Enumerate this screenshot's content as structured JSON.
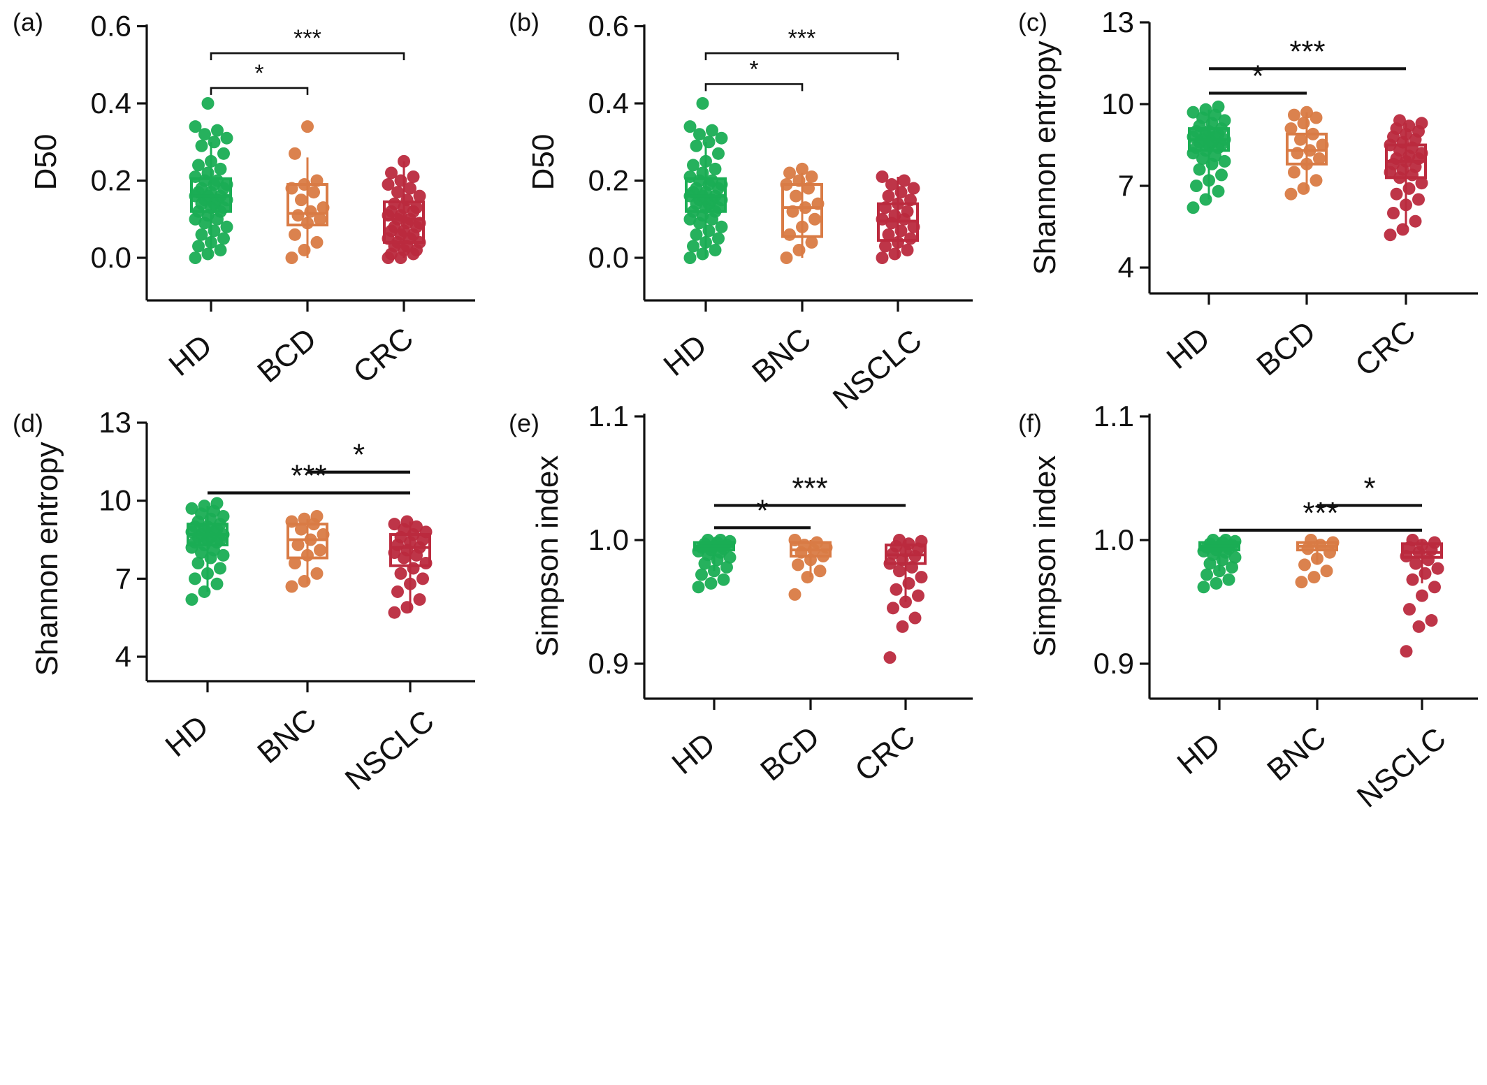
{
  "colors": {
    "HD": "#1aad54",
    "BCD": "#d97b45",
    "BNC": "#d97b45",
    "CRC": "#bb2a3e",
    "NSCLC": "#bb2a3e",
    "axis": "#111111"
  },
  "panels": [
    {
      "id": "a",
      "label": "(a)",
      "ylabel": "D50",
      "yticks": [
        "0.0",
        "0.2",
        "0.4",
        "0.6"
      ],
      "categories": [
        "HD",
        "BCD",
        "CRC"
      ]
    },
    {
      "id": "b",
      "label": "(b)",
      "ylabel": "D50",
      "yticks": [
        "0.0",
        "0.2",
        "0.4",
        "0.6"
      ],
      "categories": [
        "HD",
        "BNC",
        "NSCLC"
      ]
    },
    {
      "id": "c",
      "label": "(c)",
      "ylabel": "Shannon entropy",
      "yticks": [
        "4",
        "7",
        "10",
        "13"
      ],
      "categories": [
        "HD",
        "BCD",
        "CRC"
      ]
    },
    {
      "id": "d",
      "label": "(d)",
      "ylabel": "Shannon entropy",
      "yticks": [
        "4",
        "7",
        "10",
        "13"
      ],
      "categories": [
        "HD",
        "BNC",
        "NSCLC"
      ]
    },
    {
      "id": "e",
      "label": "(e)",
      "ylabel": "Simpson index",
      "yticks": [
        "0.9",
        "1.0",
        "1.1"
      ],
      "categories": [
        "HD",
        "BCD",
        "CRC"
      ]
    },
    {
      "id": "f",
      "label": "(f)",
      "ylabel": "Simpson index",
      "yticks": [
        "0.9",
        "1.0",
        "1.1"
      ],
      "categories": [
        "HD",
        "BNC",
        "NSCLC"
      ]
    }
  ],
  "chart_data": [
    {
      "type": "box",
      "panel": "(a)",
      "ylabel": "D50",
      "categories": [
        "HD",
        "BCD",
        "CRC"
      ],
      "ylim": [
        -0.1,
        0.6
      ],
      "boxes": [
        {
          "q1": 0.12,
          "median": 0.16,
          "q3": 0.205,
          "whisker_low": 0.0,
          "whisker_high": 0.3
        },
        {
          "q1": 0.085,
          "median": 0.115,
          "q3": 0.19,
          "whisker_low": 0.0,
          "whisker_high": 0.26
        },
        {
          "q1": 0.04,
          "median": 0.1,
          "q3": 0.145,
          "whisker_low": 0.0,
          "whisker_high": 0.25
        }
      ],
      "points": [
        [
          0.0,
          0.01,
          0.02,
          0.03,
          0.04,
          0.05,
          0.06,
          0.07,
          0.08,
          0.09,
          0.1,
          0.1,
          0.11,
          0.12,
          0.12,
          0.13,
          0.13,
          0.14,
          0.14,
          0.15,
          0.15,
          0.15,
          0.16,
          0.16,
          0.16,
          0.17,
          0.17,
          0.18,
          0.18,
          0.19,
          0.19,
          0.2,
          0.2,
          0.21,
          0.22,
          0.23,
          0.24,
          0.25,
          0.27,
          0.29,
          0.3,
          0.31,
          0.32,
          0.33,
          0.34,
          0.4
        ],
        [
          0.0,
          0.02,
          0.04,
          0.06,
          0.09,
          0.1,
          0.11,
          0.12,
          0.13,
          0.15,
          0.17,
          0.18,
          0.19,
          0.2,
          0.27,
          0.34
        ],
        [
          0.0,
          0.0,
          0.01,
          0.01,
          0.02,
          0.02,
          0.03,
          0.03,
          0.04,
          0.04,
          0.05,
          0.05,
          0.06,
          0.06,
          0.07,
          0.07,
          0.08,
          0.08,
          0.09,
          0.09,
          0.1,
          0.1,
          0.11,
          0.11,
          0.12,
          0.12,
          0.13,
          0.13,
          0.14,
          0.15,
          0.16,
          0.17,
          0.18,
          0.19,
          0.2,
          0.21,
          0.22,
          0.25
        ]
      ],
      "significance": [
        {
          "from": "HD",
          "to": "BCD",
          "label": "*",
          "y": 0.44
        },
        {
          "from": "HD",
          "to": "CRC",
          "label": "***",
          "y": 0.53
        }
      ]
    },
    {
      "type": "box",
      "panel": "(b)",
      "ylabel": "D50",
      "categories": [
        "HD",
        "BNC",
        "NSCLC"
      ],
      "ylim": [
        -0.1,
        0.6
      ],
      "boxes": [
        {
          "q1": 0.12,
          "median": 0.16,
          "q3": 0.205,
          "whisker_low": 0.0,
          "whisker_high": 0.3
        },
        {
          "q1": 0.055,
          "median": 0.13,
          "q3": 0.19,
          "whisker_low": 0.0,
          "whisker_high": 0.22
        },
        {
          "q1": 0.045,
          "median": 0.095,
          "q3": 0.14,
          "whisker_low": 0.0,
          "whisker_high": 0.21
        }
      ],
      "points": [
        [
          0.0,
          0.01,
          0.02,
          0.03,
          0.04,
          0.05,
          0.06,
          0.07,
          0.08,
          0.09,
          0.1,
          0.1,
          0.11,
          0.12,
          0.12,
          0.13,
          0.13,
          0.14,
          0.14,
          0.15,
          0.15,
          0.15,
          0.16,
          0.16,
          0.16,
          0.17,
          0.17,
          0.18,
          0.18,
          0.19,
          0.19,
          0.2,
          0.2,
          0.21,
          0.22,
          0.23,
          0.24,
          0.25,
          0.27,
          0.29,
          0.3,
          0.31,
          0.32,
          0.33,
          0.34,
          0.4
        ],
        [
          0.0,
          0.02,
          0.04,
          0.06,
          0.08,
          0.1,
          0.12,
          0.13,
          0.14,
          0.16,
          0.18,
          0.19,
          0.2,
          0.21,
          0.22,
          0.23
        ],
        [
          0.0,
          0.01,
          0.02,
          0.03,
          0.04,
          0.05,
          0.06,
          0.07,
          0.08,
          0.09,
          0.1,
          0.1,
          0.11,
          0.12,
          0.13,
          0.14,
          0.15,
          0.16,
          0.17,
          0.18,
          0.19,
          0.2,
          0.21
        ]
      ],
      "significance": [
        {
          "from": "HD",
          "to": "BNC",
          "label": "*",
          "y": 0.45
        },
        {
          "from": "HD",
          "to": "NSCLC",
          "label": "***",
          "y": 0.53
        }
      ]
    },
    {
      "type": "box",
      "panel": "(c)",
      "ylabel": "Shannon entropy",
      "categories": [
        "HD",
        "BCD",
        "CRC"
      ],
      "ylim": [
        3.5,
        13.0
      ],
      "boxes": [
        {
          "q1": 8.3,
          "median": 8.7,
          "q3": 9.1,
          "whisker_low": 6.5,
          "whisker_high": 9.8
        },
        {
          "q1": 7.8,
          "median": 8.3,
          "q3": 8.9,
          "whisker_low": 6.8,
          "whisker_high": 9.7
        },
        {
          "q1": 7.3,
          "median": 7.9,
          "q3": 8.5,
          "whisker_low": 5.5,
          "whisker_high": 9.3
        }
      ],
      "points": [
        [
          6.2,
          6.5,
          6.8,
          7.0,
          7.2,
          7.4,
          7.6,
          7.8,
          7.9,
          8.0,
          8.1,
          8.2,
          8.3,
          8.4,
          8.4,
          8.5,
          8.5,
          8.6,
          8.6,
          8.7,
          8.7,
          8.8,
          8.8,
          8.9,
          8.9,
          9.0,
          9.0,
          9.1,
          9.2,
          9.3,
          9.4,
          9.5,
          9.6,
          9.7,
          9.8,
          9.9
        ],
        [
          6.7,
          6.9,
          7.2,
          7.5,
          7.8,
          8.0,
          8.2,
          8.3,
          8.5,
          8.7,
          8.9,
          9.1,
          9.3,
          9.5,
          9.6,
          9.7
        ],
        [
          5.2,
          5.4,
          5.7,
          6.0,
          6.3,
          6.5,
          6.7,
          6.9,
          7.1,
          7.3,
          7.4,
          7.5,
          7.6,
          7.7,
          7.8,
          7.9,
          8.0,
          8.0,
          8.1,
          8.2,
          8.3,
          8.4,
          8.5,
          8.6,
          8.7,
          8.8,
          8.9,
          9.0,
          9.1,
          9.2,
          9.3,
          9.4
        ]
      ],
      "significance": [
        {
          "from": "HD",
          "to": "BCD",
          "label": "*",
          "y": 10.4
        },
        {
          "from": "HD",
          "to": "CRC",
          "label": "***",
          "y": 11.3
        }
      ]
    },
    {
      "type": "box",
      "panel": "(d)",
      "ylabel": "Shannon entropy",
      "categories": [
        "HD",
        "BNC",
        "NSCLC"
      ],
      "ylim": [
        3.5,
        13.0
      ],
      "boxes": [
        {
          "q1": 8.3,
          "median": 8.7,
          "q3": 9.1,
          "whisker_low": 6.5,
          "whisker_high": 9.8
        },
        {
          "q1": 7.8,
          "median": 8.5,
          "q3": 9.1,
          "whisker_low": 6.8,
          "whisker_high": 9.3
        },
        {
          "q1": 7.5,
          "median": 8.2,
          "q3": 8.7,
          "whisker_low": 5.7,
          "whisker_high": 9.2
        }
      ],
      "points": [
        [
          6.2,
          6.5,
          6.8,
          7.0,
          7.2,
          7.4,
          7.6,
          7.8,
          7.9,
          8.0,
          8.1,
          8.2,
          8.3,
          8.4,
          8.4,
          8.5,
          8.5,
          8.6,
          8.6,
          8.7,
          8.7,
          8.8,
          8.8,
          8.9,
          8.9,
          9.0,
          9.0,
          9.1,
          9.2,
          9.3,
          9.4,
          9.5,
          9.6,
          9.7,
          9.8,
          9.9
        ],
        [
          6.7,
          6.9,
          7.2,
          7.6,
          7.9,
          8.1,
          8.3,
          8.5,
          8.7,
          8.9,
          9.1,
          9.2,
          9.3,
          9.4
        ],
        [
          5.7,
          5.9,
          6.2,
          6.5,
          6.8,
          7.0,
          7.2,
          7.4,
          7.6,
          7.8,
          7.9,
          8.0,
          8.1,
          8.2,
          8.3,
          8.4,
          8.5,
          8.6,
          8.7,
          8.8,
          8.9,
          9.0,
          9.1,
          9.2
        ]
      ],
      "significance": [
        {
          "from": "BNC",
          "to": "NSCLC",
          "label": "*",
          "y": 11.1
        },
        {
          "from": "HD",
          "to": "NSCLC",
          "label": "***",
          "y": 10.3
        }
      ]
    },
    {
      "type": "box",
      "panel": "(e)",
      "ylabel": "Simpson index",
      "categories": [
        "HD",
        "BCD",
        "CRC"
      ],
      "ylim": [
        0.875,
        1.1
      ],
      "boxes": [
        {
          "q1": 0.992,
          "median": 0.995,
          "q3": 0.998,
          "whisker_low": 0.975,
          "whisker_high": 1.0
        },
        {
          "q1": 0.987,
          "median": 0.992,
          "q3": 0.998,
          "whisker_low": 0.97,
          "whisker_high": 1.0
        },
        {
          "q1": 0.981,
          "median": 0.988,
          "q3": 0.996,
          "whisker_low": 0.95,
          "whisker_high": 1.0
        }
      ],
      "points": [
        [
          0.962,
          0.965,
          0.968,
          0.972,
          0.975,
          0.978,
          0.981,
          0.984,
          0.986,
          0.988,
          0.99,
          0.991,
          0.992,
          0.993,
          0.994,
          0.995,
          0.996,
          0.997,
          0.998,
          0.999,
          1.0,
          1.0
        ],
        [
          0.956,
          0.97,
          0.975,
          0.98,
          0.984,
          0.987,
          0.99,
          0.992,
          0.994,
          0.996,
          0.998,
          1.0
        ],
        [
          0.905,
          0.93,
          0.937,
          0.945,
          0.95,
          0.955,
          0.96,
          0.965,
          0.97,
          0.975,
          0.978,
          0.981,
          0.984,
          0.987,
          0.989,
          0.991,
          0.993,
          0.995,
          0.997,
          0.999,
          1.0
        ]
      ],
      "significance": [
        {
          "from": "HD",
          "to": "BCD",
          "label": "*",
          "y": 1.01
        },
        {
          "from": "HD",
          "to": "CRC",
          "label": "***",
          "y": 1.028
        }
      ]
    },
    {
      "type": "box",
      "panel": "(f)",
      "ylabel": "Simpson index",
      "categories": [
        "HD",
        "BNC",
        "NSCLC"
      ],
      "ylim": [
        0.875,
        1.1
      ],
      "boxes": [
        {
          "q1": 0.992,
          "median": 0.995,
          "q3": 0.998,
          "whisker_low": 0.975,
          "whisker_high": 1.0
        },
        {
          "q1": 0.992,
          "median": 0.995,
          "q3": 0.998,
          "whisker_low": 0.98,
          "whisker_high": 1.0
        },
        {
          "q1": 0.986,
          "median": 0.99,
          "q3": 0.997,
          "whisker_low": 0.965,
          "whisker_high": 1.0
        }
      ],
      "points": [
        [
          0.962,
          0.965,
          0.968,
          0.972,
          0.975,
          0.978,
          0.981,
          0.984,
          0.986,
          0.988,
          0.99,
          0.991,
          0.992,
          0.993,
          0.994,
          0.995,
          0.996,
          0.997,
          0.998,
          0.999,
          1.0,
          1.0
        ],
        [
          0.966,
          0.97,
          0.975,
          0.98,
          0.985,
          0.99,
          0.993,
          0.996,
          0.998,
          1.0
        ],
        [
          0.91,
          0.93,
          0.935,
          0.944,
          0.955,
          0.962,
          0.968,
          0.973,
          0.977,
          0.981,
          0.984,
          0.987,
          0.99,
          0.992,
          0.994,
          0.996,
          0.998,
          1.0
        ]
      ],
      "significance": [
        {
          "from": "BNC",
          "to": "NSCLC",
          "label": "*",
          "y": 1.028
        },
        {
          "from": "HD",
          "to": "NSCLC",
          "label": "***",
          "y": 1.008
        }
      ]
    }
  ]
}
